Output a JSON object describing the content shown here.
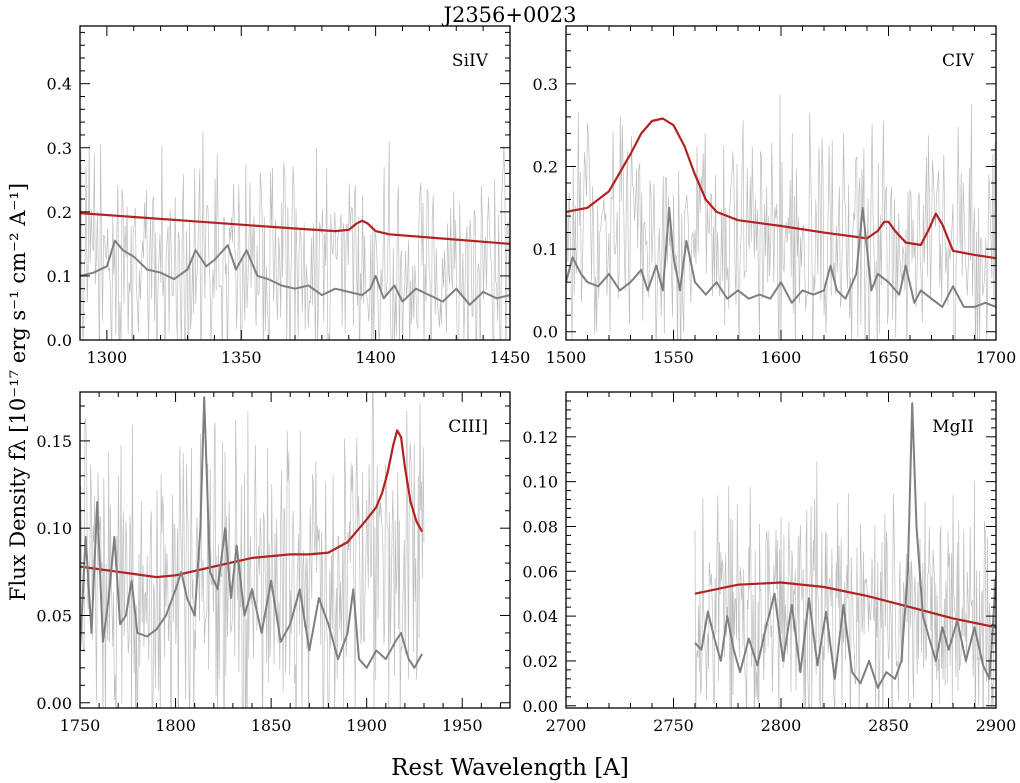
{
  "figure": {
    "title": "J2356+0023",
    "xlabel": "Rest Wavelength [A]",
    "ylabel": "Flux Density fλ [10⁻¹⁷ erg s⁻¹ cm⁻² A⁻¹]",
    "colors": {
      "model": "#b22222",
      "smoothed": "#7f7f7f",
      "raw": "#bdbdbd",
      "axes": "#000000"
    }
  },
  "chart_data": [
    {
      "type": "line",
      "panel_label": "SiIV",
      "xlim": [
        1290,
        1450
      ],
      "ylim": [
        0.0,
        0.49
      ],
      "xticks": [
        1300,
        1350,
        1400,
        1450
      ],
      "yticks": [
        0.0,
        0.1,
        0.2,
        0.3,
        0.4
      ],
      "yticklabels": [
        "0.0",
        "0.1",
        "0.2",
        "0.3",
        "0.4"
      ],
      "raw_range": [
        1290,
        1450
      ],
      "raw_level": 0.12,
      "raw_amplitude": 0.16,
      "series": [
        {
          "role": "model",
          "x": [
            1290,
            1310,
            1330,
            1350,
            1370,
            1385,
            1390,
            1393,
            1395,
            1397,
            1400,
            1405,
            1420,
            1435,
            1450
          ],
          "y": [
            0.198,
            0.192,
            0.186,
            0.18,
            0.174,
            0.17,
            0.172,
            0.182,
            0.186,
            0.182,
            0.17,
            0.165,
            0.16,
            0.155,
            0.15
          ]
        },
        {
          "role": "smoothed",
          "x": [
            1290,
            1295,
            1300,
            1303,
            1306,
            1310,
            1315,
            1320,
            1325,
            1330,
            1333,
            1337,
            1340,
            1345,
            1348,
            1352,
            1356,
            1360,
            1365,
            1370,
            1375,
            1380,
            1385,
            1390,
            1395,
            1398,
            1400,
            1403,
            1407,
            1410,
            1415,
            1420,
            1425,
            1430,
            1435,
            1440,
            1445,
            1450
          ],
          "y": [
            0.1,
            0.105,
            0.115,
            0.155,
            0.14,
            0.13,
            0.11,
            0.105,
            0.095,
            0.11,
            0.14,
            0.115,
            0.125,
            0.148,
            0.11,
            0.14,
            0.1,
            0.095,
            0.085,
            0.08,
            0.085,
            0.07,
            0.08,
            0.075,
            0.07,
            0.08,
            0.1,
            0.065,
            0.085,
            0.06,
            0.08,
            0.07,
            0.06,
            0.08,
            0.055,
            0.075,
            0.065,
            0.07
          ]
        }
      ]
    },
    {
      "type": "line",
      "panel_label": "CIV",
      "xlim": [
        1500,
        1700
      ],
      "ylim": [
        -0.01,
        0.37
      ],
      "xticks": [
        1500,
        1550,
        1600,
        1650,
        1700
      ],
      "yticks": [
        0.0,
        0.1,
        0.2,
        0.3
      ],
      "yticklabels": [
        "0.0",
        "0.1",
        "0.2",
        "0.3"
      ],
      "raw_range": [
        1500,
        1700
      ],
      "raw_level": 0.11,
      "raw_amplitude": 0.13,
      "series": [
        {
          "role": "model",
          "x": [
            1500,
            1510,
            1520,
            1530,
            1535,
            1540,
            1545,
            1550,
            1555,
            1560,
            1565,
            1570,
            1580,
            1600,
            1620,
            1640,
            1645,
            1648,
            1650,
            1653,
            1658,
            1665,
            1669,
            1672,
            1675,
            1680,
            1690,
            1700
          ],
          "y": [
            0.145,
            0.15,
            0.17,
            0.215,
            0.24,
            0.255,
            0.258,
            0.25,
            0.225,
            0.19,
            0.16,
            0.145,
            0.135,
            0.128,
            0.12,
            0.113,
            0.122,
            0.133,
            0.133,
            0.122,
            0.108,
            0.105,
            0.125,
            0.143,
            0.13,
            0.098,
            0.093,
            0.089
          ]
        },
        {
          "role": "smoothed",
          "x": [
            1500,
            1503,
            1507,
            1510,
            1515,
            1520,
            1525,
            1530,
            1535,
            1538,
            1542,
            1545,
            1548,
            1550,
            1553,
            1556,
            1560,
            1565,
            1570,
            1575,
            1580,
            1585,
            1590,
            1595,
            1600,
            1605,
            1610,
            1615,
            1620,
            1623,
            1626,
            1630,
            1635,
            1638,
            1642,
            1645,
            1650,
            1655,
            1658,
            1662,
            1665,
            1670,
            1675,
            1680,
            1685,
            1690,
            1695,
            1700
          ],
          "y": [
            0.06,
            0.09,
            0.07,
            0.06,
            0.055,
            0.07,
            0.05,
            0.06,
            0.075,
            0.05,
            0.08,
            0.05,
            0.15,
            0.09,
            0.05,
            0.11,
            0.06,
            0.045,
            0.06,
            0.04,
            0.05,
            0.04,
            0.045,
            0.04,
            0.06,
            0.035,
            0.05,
            0.045,
            0.05,
            0.08,
            0.05,
            0.04,
            0.07,
            0.15,
            0.05,
            0.07,
            0.06,
            0.045,
            0.08,
            0.035,
            0.05,
            0.04,
            0.03,
            0.055,
            0.03,
            0.03,
            0.035,
            0.03
          ]
        }
      ]
    },
    {
      "type": "line",
      "panel_label": "CIII]",
      "xlim": [
        1750,
        1975
      ],
      "ylim": [
        -0.003,
        0.178
      ],
      "xticks": [
        1750,
        1800,
        1850,
        1900,
        1950
      ],
      "yticks": [
        0.0,
        0.05,
        0.1,
        0.15
      ],
      "yticklabels": [
        "0.00",
        "0.05",
        "0.10",
        "0.15"
      ],
      "raw_range": [
        1750,
        1930
      ],
      "raw_level": 0.07,
      "raw_amplitude": 0.085,
      "series": [
        {
          "role": "model",
          "x": [
            1750,
            1770,
            1790,
            1800,
            1820,
            1840,
            1860,
            1870,
            1880,
            1890,
            1900,
            1905,
            1908,
            1911,
            1914,
            1916,
            1918,
            1920,
            1923,
            1926,
            1929
          ],
          "y": [
            0.078,
            0.075,
            0.072,
            0.073,
            0.078,
            0.083,
            0.085,
            0.085,
            0.086,
            0.092,
            0.105,
            0.112,
            0.12,
            0.132,
            0.148,
            0.156,
            0.152,
            0.135,
            0.115,
            0.104,
            0.098
          ]
        },
        {
          "role": "smoothed",
          "x": [
            1750,
            1753,
            1756,
            1759,
            1762,
            1765,
            1768,
            1771,
            1774,
            1777,
            1780,
            1785,
            1790,
            1795,
            1800,
            1803,
            1806,
            1810,
            1813,
            1815,
            1818,
            1822,
            1826,
            1829,
            1832,
            1836,
            1840,
            1845,
            1850,
            1855,
            1860,
            1865,
            1870,
            1875,
            1880,
            1885,
            1890,
            1893,
            1896,
            1900,
            1905,
            1910,
            1915,
            1918,
            1922,
            1925,
            1929
          ],
          "y": [
            0.03,
            0.095,
            0.04,
            0.115,
            0.035,
            0.06,
            0.095,
            0.045,
            0.05,
            0.07,
            0.04,
            0.038,
            0.042,
            0.05,
            0.065,
            0.075,
            0.06,
            0.05,
            0.1,
            0.175,
            0.075,
            0.065,
            0.1,
            0.06,
            0.09,
            0.05,
            0.065,
            0.04,
            0.07,
            0.035,
            0.045,
            0.065,
            0.03,
            0.06,
            0.045,
            0.025,
            0.04,
            0.065,
            0.025,
            0.02,
            0.03,
            0.025,
            0.035,
            0.04,
            0.025,
            0.02,
            0.028
          ]
        }
      ]
    },
    {
      "type": "line",
      "panel_label": "MgII",
      "xlim": [
        2700,
        2900
      ],
      "ylim": [
        -0.001,
        0.14
      ],
      "xticks": [
        2700,
        2750,
        2800,
        2850,
        2900
      ],
      "yticks": [
        0.0,
        0.02,
        0.04,
        0.06,
        0.08,
        0.1,
        0.12
      ],
      "yticklabels": [
        "0.00",
        "0.02",
        "0.04",
        "0.06",
        "0.08",
        "0.10",
        "0.12"
      ],
      "raw_range": [
        2760,
        2900
      ],
      "raw_level": 0.04,
      "raw_amplitude": 0.05,
      "series": [
        {
          "role": "model",
          "x": [
            2760,
            2780,
            2800,
            2820,
            2840,
            2860,
            2880,
            2900
          ],
          "y": [
            0.05,
            0.054,
            0.055,
            0.053,
            0.049,
            0.044,
            0.039,
            0.035
          ]
        },
        {
          "role": "smoothed",
          "x": [
            2760,
            2763,
            2766,
            2769,
            2772,
            2775,
            2778,
            2781,
            2785,
            2789,
            2793,
            2797,
            2801,
            2805,
            2809,
            2813,
            2817,
            2821,
            2825,
            2829,
            2833,
            2837,
            2841,
            2845,
            2849,
            2853,
            2856,
            2859,
            2861,
            2863,
            2866,
            2869,
            2872,
            2875,
            2878,
            2882,
            2886,
            2890,
            2894,
            2897,
            2900
          ],
          "y": [
            0.028,
            0.025,
            0.042,
            0.03,
            0.02,
            0.04,
            0.025,
            0.015,
            0.03,
            0.018,
            0.035,
            0.05,
            0.02,
            0.045,
            0.015,
            0.048,
            0.018,
            0.042,
            0.012,
            0.045,
            0.015,
            0.01,
            0.02,
            0.008,
            0.015,
            0.012,
            0.02,
            0.06,
            0.135,
            0.08,
            0.04,
            0.03,
            0.02,
            0.035,
            0.025,
            0.038,
            0.02,
            0.035,
            0.018,
            0.012,
            0.058
          ]
        }
      ]
    }
  ]
}
